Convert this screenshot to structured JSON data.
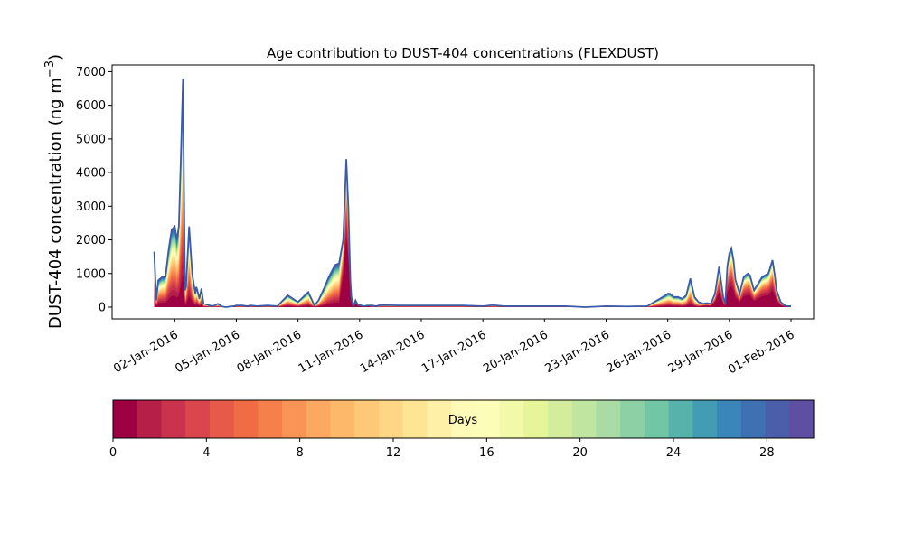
{
  "chart_data": {
    "type": "area",
    "title": "Age contribution to DUST-404 concentrations (FLEXDUST)",
    "ylabel_main": "DUST-404 concentration (ng m",
    "ylabel_exp": "−3",
    "ylabel_close": ")",
    "xlabel": "",
    "ylim": [
      -350,
      7200
    ],
    "yticks": [
      0,
      1000,
      2000,
      3000,
      4000,
      5000,
      6000,
      7000
    ],
    "ytick_labels": [
      "0",
      "1000",
      "2000",
      "3000",
      "4000",
      "5000",
      "6000",
      "7000"
    ],
    "xlim_days": [
      -3.05,
      31.1
    ],
    "xticks": [
      {
        "day": 0,
        "label": "02-Jan-2016"
      },
      {
        "day": 3,
        "label": "05-Jan-2016"
      },
      {
        "day": 6,
        "label": "08-Jan-2016"
      },
      {
        "day": 9,
        "label": "11-Jan-2016"
      },
      {
        "day": 12,
        "label": "14-Jan-2016"
      },
      {
        "day": 15,
        "label": "17-Jan-2016"
      },
      {
        "day": 18,
        "label": "20-Jan-2016"
      },
      {
        "day": 21,
        "label": "23-Jan-2016"
      },
      {
        "day": 24,
        "label": "26-Jan-2016"
      },
      {
        "day": 27,
        "label": "29-Jan-2016"
      },
      {
        "day": 30,
        "label": "01-Feb-2016"
      }
    ],
    "total_series": {
      "name": "",
      "days": [
        -1.0,
        -0.9,
        -0.8,
        -0.6,
        -0.45,
        -0.3,
        -0.15,
        0.0,
        0.1,
        0.2,
        0.3,
        0.4,
        0.45,
        0.5,
        0.55,
        0.6,
        0.7,
        0.85,
        1.0,
        1.05,
        1.1,
        1.2,
        1.3,
        1.4,
        1.55,
        1.7,
        1.8,
        1.95,
        2.1,
        2.3,
        2.5,
        2.7,
        2.9,
        3.0,
        3.3,
        3.5,
        3.7,
        4.0,
        4.5,
        5.0,
        5.5,
        6.0,
        6.5,
        6.8,
        7.0,
        7.3,
        7.5,
        7.8,
        8.0,
        8.2,
        8.35,
        8.45,
        8.55,
        8.6,
        8.65,
        8.7,
        8.8,
        8.9,
        9.0,
        9.2,
        9.4,
        9.6,
        9.8,
        10.0,
        11.0,
        12.0,
        13.0,
        14.0,
        15.0,
        15.5,
        16.0,
        16.5,
        17.0,
        18.0,
        19.0,
        20.0,
        21.0,
        22.0,
        23.0,
        23.9,
        24.0,
        24.1,
        24.3,
        24.5,
        24.7,
        24.9,
        25.1,
        25.3,
        25.5,
        25.7,
        25.9,
        26.1,
        26.3,
        26.5,
        26.7,
        26.8,
        26.9,
        27.0,
        27.1,
        27.2,
        27.3,
        27.5,
        27.7,
        27.9,
        28.0,
        28.2,
        28.4,
        28.6,
        28.9,
        29.1,
        29.2,
        29.3,
        29.5,
        29.7,
        29.8,
        30.0
      ],
      "values": [
        1650,
        200,
        800,
        900,
        900,
        1700,
        2300,
        2400,
        2000,
        2400,
        4500,
        6800,
        3500,
        500,
        600,
        1200,
        2400,
        1000,
        400,
        600,
        500,
        250,
        550,
        100,
        80,
        50,
        30,
        50,
        100,
        20,
        0,
        20,
        30,
        50,
        50,
        30,
        50,
        30,
        50,
        30,
        350,
        150,
        450,
        50,
        200,
        600,
        900,
        1250,
        1300,
        2000,
        4400,
        3000,
        800,
        300,
        100,
        50,
        200,
        80,
        60,
        30,
        50,
        50,
        30,
        60,
        50,
        50,
        50,
        50,
        30,
        60,
        30,
        30,
        30,
        30,
        30,
        0,
        30,
        20,
        30,
        350,
        400,
        400,
        300,
        300,
        250,
        350,
        850,
        300,
        150,
        100,
        120,
        100,
        400,
        1200,
        300,
        100,
        1200,
        1600,
        1750,
        1400,
        800,
        400,
        900,
        1000,
        950,
        500,
        700,
        900,
        1000,
        1400,
        1000,
        500,
        150,
        50,
        30,
        30
      ]
    },
    "age_bins_days": [
      0,
      1,
      2,
      3,
      4,
      5,
      6,
      7,
      8,
      9,
      10,
      11,
      12,
      13,
      14,
      15,
      16,
      17,
      18,
      19,
      20,
      21,
      22,
      23,
      24,
      25,
      26,
      27,
      28,
      29,
      30
    ],
    "colorbar": {
      "label": "Days",
      "range": [
        0,
        30
      ],
      "ticks": [
        "0",
        "4",
        "8",
        "12",
        "16",
        "20",
        "24",
        "28"
      ],
      "colors": [
        "#9e0142",
        "#b51f48",
        "#cb334c",
        "#da464d",
        "#e75948",
        "#f06c44",
        "#f6804b",
        "#f99456",
        "#fba862",
        "#fdb96a",
        "#fdc877",
        "#fed685",
        "#fee593",
        "#fef0a6",
        "#fefbb9",
        "#fbfdb9",
        "#f2faaa",
        "#e6f598",
        "#d3ed9c",
        "#bfe5a0",
        "#a9dca4",
        "#8cd0a4",
        "#71c6a5",
        "#57b2ab",
        "#419cb4",
        "#3a86bb",
        "#3e71b1",
        "#4b5eaa",
        "#5e4fa2"
      ]
    },
    "grid": false,
    "legend": "none"
  }
}
